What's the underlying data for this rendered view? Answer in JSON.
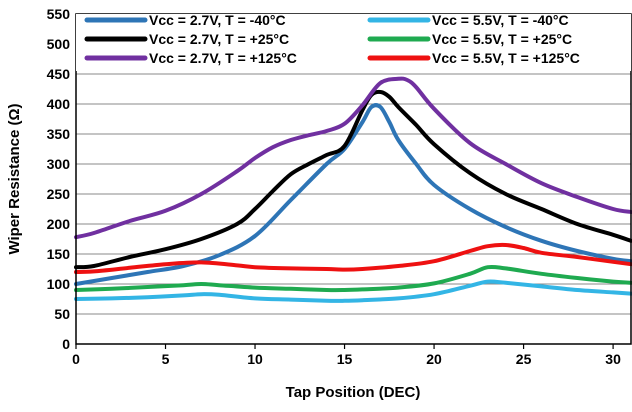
{
  "chart_data": {
    "type": "line",
    "title": "",
    "xlabel": "Tap Position (DEC)",
    "ylabel": "Wiper Resistance (Ω)",
    "xlim": [
      0,
      31
    ],
    "ylim": [
      0,
      550
    ],
    "xticks": [
      0,
      5,
      10,
      15,
      20,
      25,
      30
    ],
    "yticks": [
      0,
      50,
      100,
      150,
      200,
      250,
      300,
      350,
      400,
      450,
      500,
      550
    ],
    "grid": "horizontal",
    "legend_position": "top",
    "series": [
      {
        "name": "Vcc = 2.7V, T = -40°C",
        "color": "#2E75B6",
        "x": [
          0,
          2,
          4,
          6,
          8,
          10,
          12,
          14,
          15,
          16,
          16.5,
          17,
          17.5,
          18,
          19,
          20,
          22,
          24,
          26,
          28,
          30,
          31
        ],
        "y": [
          100,
          110,
          120,
          130,
          148,
          180,
          240,
          300,
          325,
          370,
          395,
          395,
          370,
          340,
          300,
          265,
          225,
          195,
          172,
          155,
          142,
          138
        ]
      },
      {
        "name": "Vcc = 5.5V, T = -40°C",
        "color": "#33B5E5",
        "x": [
          0,
          2,
          4,
          6,
          7,
          8,
          10,
          12,
          14,
          15,
          16,
          18,
          20,
          22,
          23,
          24,
          26,
          28,
          30,
          31
        ],
        "y": [
          75,
          76,
          78,
          81,
          83,
          82,
          76,
          74,
          72,
          72,
          73,
          76,
          83,
          97,
          104,
          102,
          96,
          90,
          86,
          84
        ]
      },
      {
        "name": "Vcc = 2.7V, T = +25°C",
        "color": "#000000",
        "x": [
          0,
          1,
          3,
          5,
          7,
          9,
          10,
          11,
          12,
          13,
          14,
          15,
          16,
          16.5,
          17,
          17.5,
          18,
          19,
          20,
          22,
          24,
          26,
          28,
          30,
          31
        ],
        "y": [
          128,
          130,
          145,
          158,
          175,
          200,
          225,
          255,
          283,
          300,
          315,
          330,
          390,
          415,
          420,
          412,
          395,
          365,
          333,
          285,
          250,
          225,
          200,
          182,
          172
        ]
      },
      {
        "name": "Vcc = 5.5V, T = +25°C",
        "color": "#1FAA50",
        "x": [
          0,
          2,
          4,
          6,
          7,
          8,
          10,
          12,
          14,
          15,
          16,
          18,
          20,
          22,
          23,
          24,
          26,
          28,
          30,
          31
        ],
        "y": [
          90,
          92,
          95,
          98,
          100,
          98,
          94,
          92,
          90,
          90,
          91,
          94,
          101,
          117,
          128,
          126,
          117,
          110,
          104,
          102
        ]
      },
      {
        "name": "Vcc = 2.7V, T = +125°C",
        "color": "#7030A0",
        "x": [
          0,
          1,
          3,
          5,
          7,
          9,
          10,
          11,
          12,
          13,
          14,
          15,
          16,
          17,
          18,
          18.5,
          19,
          20,
          22,
          24,
          26,
          28,
          30,
          31
        ],
        "y": [
          178,
          185,
          205,
          222,
          250,
          288,
          310,
          328,
          340,
          348,
          355,
          367,
          398,
          435,
          442,
          440,
          428,
          392,
          335,
          300,
          268,
          245,
          225,
          220
        ]
      },
      {
        "name": "Vcc = 5.5V, T = +125°C",
        "color": "#EE1111",
        "x": [
          0,
          1,
          3,
          5,
          7,
          9,
          10,
          12,
          14,
          15,
          16,
          18,
          20,
          22,
          23,
          24,
          25,
          26,
          28,
          30,
          31
        ],
        "y": [
          120,
          121,
          127,
          133,
          136,
          131,
          128,
          126,
          125,
          124,
          125,
          130,
          138,
          155,
          163,
          165,
          160,
          152,
          145,
          137,
          133
        ]
      }
    ]
  }
}
